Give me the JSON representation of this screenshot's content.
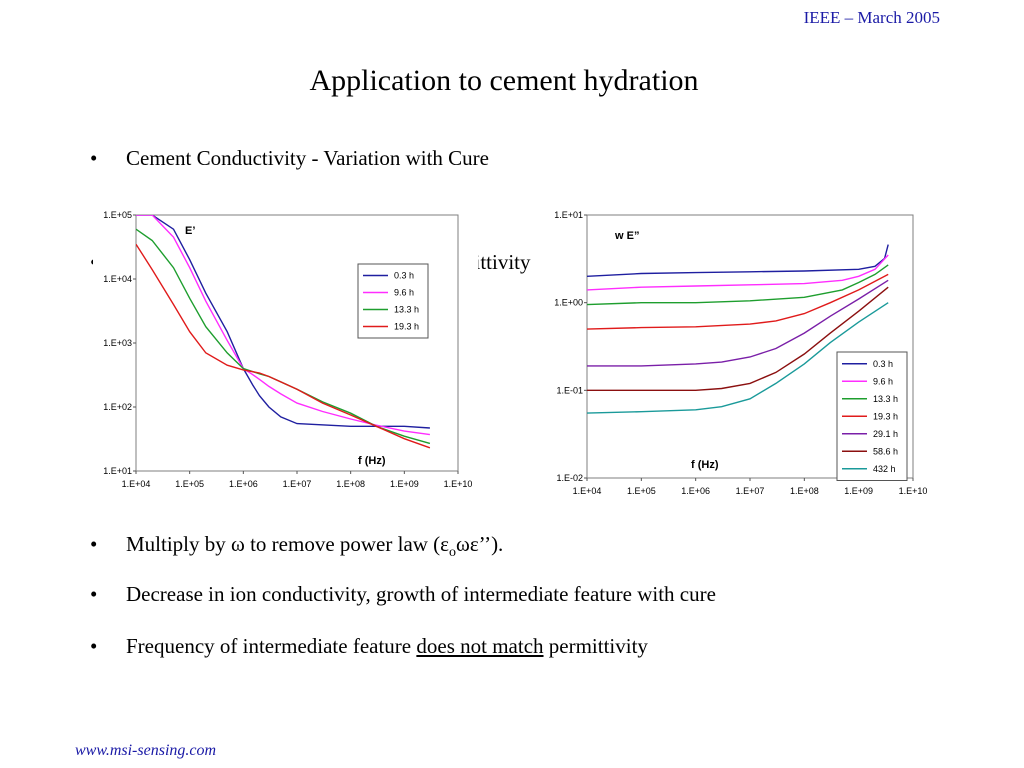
{
  "header": {
    "note": "IEEE – March 2005"
  },
  "title": "Application to cement hydration",
  "bullets": {
    "b1": "Cement Conductivity - Variation with Cure",
    "b2_visible": "nittivity",
    "b3_pre": "Multiply by ω to remove power law (ε",
    "b3_sub": "o",
    "b3_post": "ωε’’).",
    "b4": "Decrease in ion conductivity, growth of intermediate feature with cure",
    "b5_pre": "Frequency of intermediate feature ",
    "b5_underline": "does not match",
    "b5_post": " permittivity"
  },
  "footer": {
    "link": "www.msi-sensing.com"
  },
  "chart_data": [
    {
      "type": "line",
      "title": "E’",
      "xlabel": "f (Hz)",
      "ylabel": "",
      "x_scale": "log",
      "y_scale": "log",
      "xlim": [
        10000,
        10000000000
      ],
      "ylim": [
        10,
        100000
      ],
      "x_ticks": [
        "1.E+04",
        "1.E+05",
        "1.E+06",
        "1.E+07",
        "1.E+08",
        "1.E+09",
        "1.E+10"
      ],
      "y_ticks": [
        "1.E+01",
        "1.E+02",
        "1.E+03",
        "1.E+04",
        "1.E+05"
      ],
      "grid": false,
      "legend": "right",
      "series": [
        {
          "name": "0.3 h",
          "color": "#1f1fa0",
          "x": [
            10000,
            20000,
            50000,
            100000,
            200000,
            500000,
            1000000,
            1500000,
            2000000,
            3000000,
            5000000,
            10000000,
            100000000,
            1000000000,
            3000000000
          ],
          "y": [
            100000,
            100000,
            60000,
            20000,
            6000,
            1500,
            400,
            220,
            150,
            100,
            70,
            55,
            50,
            50,
            47
          ]
        },
        {
          "name": "9.6 h",
          "color": "#ff2dff",
          "x": [
            10000,
            20000,
            50000,
            100000,
            200000,
            500000,
            1000000,
            1500000,
            2000000,
            3000000,
            5000000,
            10000000,
            30000000,
            100000000,
            300000000,
            1000000000,
            3000000000
          ],
          "y": [
            100000,
            100000,
            45000,
            15000,
            4500,
            1100,
            400,
            320,
            270,
            210,
            160,
            115,
            85,
            65,
            52,
            42,
            37
          ]
        },
        {
          "name": "13.3 h",
          "color": "#1e9e2e",
          "x": [
            10000,
            20000,
            50000,
            100000,
            200000,
            500000,
            1000000,
            2000000,
            3000000,
            10000000,
            30000000,
            100000000,
            300000000,
            1000000000,
            3000000000
          ],
          "y": [
            60000,
            40000,
            15000,
            5000,
            1800,
            700,
            400,
            330,
            300,
            190,
            120,
            80,
            50,
            35,
            27
          ]
        },
        {
          "name": "19.3 h",
          "color": "#e01b1b",
          "x": [
            10000,
            20000,
            50000,
            100000,
            200000,
            500000,
            1000000,
            2000000,
            3000000,
            10000000,
            30000000,
            100000000,
            300000000,
            1000000000,
            3000000000
          ],
          "y": [
            35000,
            14000,
            4000,
            1500,
            700,
            450,
            380,
            340,
            300,
            190,
            115,
            75,
            50,
            32,
            23
          ]
        }
      ]
    },
    {
      "type": "line",
      "title": "w E”",
      "xlabel": "f (Hz)",
      "ylabel": "",
      "x_scale": "log",
      "y_scale": "log",
      "xlim": [
        10000,
        10000000000
      ],
      "ylim": [
        0.01,
        10
      ],
      "x_ticks": [
        "1.E+04",
        "1.E+05",
        "1.E+06",
        "1.E+07",
        "1.E+08",
        "1.E+09",
        "1.E+10"
      ],
      "y_ticks": [
        "1.E-02",
        "1.E-01",
        "1.E+00",
        "1.E+01"
      ],
      "grid": false,
      "legend": "bottom-right",
      "series": [
        {
          "name": "0.3 h",
          "color": "#1f1fa0",
          "x": [
            10000,
            100000,
            1000000,
            10000000,
            100000000,
            1000000000,
            2000000000,
            3000000000,
            3500000000
          ],
          "y": [
            2.0,
            2.15,
            2.2,
            2.25,
            2.3,
            2.4,
            2.6,
            3.2,
            4.6
          ]
        },
        {
          "name": "9.6 h",
          "color": "#ff2dff",
          "x": [
            10000,
            100000,
            1000000,
            10000000,
            100000000,
            500000000,
            1000000000,
            2000000000,
            3500000000
          ],
          "y": [
            1.4,
            1.5,
            1.55,
            1.6,
            1.65,
            1.8,
            2.0,
            2.4,
            3.5
          ]
        },
        {
          "name": "13.3 h",
          "color": "#1e9e2e",
          "x": [
            10000,
            100000,
            1000000,
            10000000,
            100000000,
            500000000,
            1000000000,
            2000000000,
            3500000000
          ],
          "y": [
            0.95,
            1.0,
            1.0,
            1.05,
            1.15,
            1.4,
            1.7,
            2.1,
            2.7
          ]
        },
        {
          "name": "19.3 h",
          "color": "#e01b1b",
          "x": [
            10000,
            100000,
            1000000,
            10000000,
            30000000,
            100000000,
            300000000,
            1000000000,
            3500000000
          ],
          "y": [
            0.5,
            0.52,
            0.53,
            0.57,
            0.62,
            0.75,
            1.0,
            1.4,
            2.1
          ]
        },
        {
          "name": "29.1 h",
          "color": "#7a1fa8",
          "x": [
            10000,
            100000,
            1000000,
            3000000,
            10000000,
            30000000,
            100000000,
            300000000,
            1000000000,
            3500000000
          ],
          "y": [
            0.19,
            0.19,
            0.2,
            0.21,
            0.24,
            0.3,
            0.45,
            0.7,
            1.1,
            1.8
          ]
        },
        {
          "name": "58.6 h",
          "color": "#8b0f0f",
          "x": [
            10000,
            100000,
            1000000,
            3000000,
            10000000,
            30000000,
            100000000,
            300000000,
            1000000000,
            3500000000
          ],
          "y": [
            0.1,
            0.1,
            0.1,
            0.105,
            0.12,
            0.16,
            0.26,
            0.45,
            0.8,
            1.5
          ]
        },
        {
          "name": "432 h",
          "color": "#1a9a9a",
          "x": [
            10000,
            100000,
            1000000,
            3000000,
            10000000,
            30000000,
            100000000,
            300000000,
            1000000000,
            3500000000
          ],
          "y": [
            0.055,
            0.057,
            0.06,
            0.065,
            0.08,
            0.12,
            0.2,
            0.35,
            0.6,
            1.0
          ]
        }
      ]
    }
  ]
}
